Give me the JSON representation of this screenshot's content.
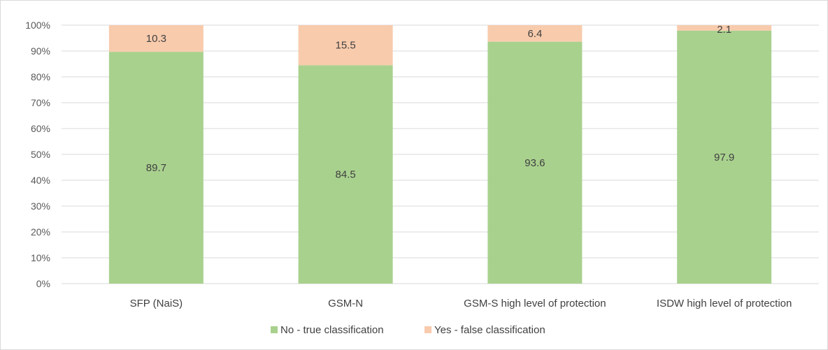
{
  "chart_data": {
    "type": "bar",
    "stacked": true,
    "percent_stacked": true,
    "categories": [
      "SFP (NaiS)",
      "GSM-N",
      "GSM-S high level of protection",
      "ISDW high level of protection"
    ],
    "series": [
      {
        "name": "No - true classification",
        "values": [
          89.7,
          84.5,
          93.6,
          97.9
        ],
        "color": "#a9d18e"
      },
      {
        "name": "Yes - false classification",
        "values": [
          10.3,
          15.5,
          6.4,
          2.1
        ],
        "color": "#f8cbad"
      }
    ],
    "y_ticks": [
      "0%",
      "10%",
      "20%",
      "30%",
      "40%",
      "50%",
      "60%",
      "70%",
      "80%",
      "90%",
      "100%"
    ],
    "ylim": [
      0,
      100
    ],
    "grid": true,
    "legend_position": "bottom",
    "title": "",
    "xlabel": "",
    "ylabel": ""
  }
}
